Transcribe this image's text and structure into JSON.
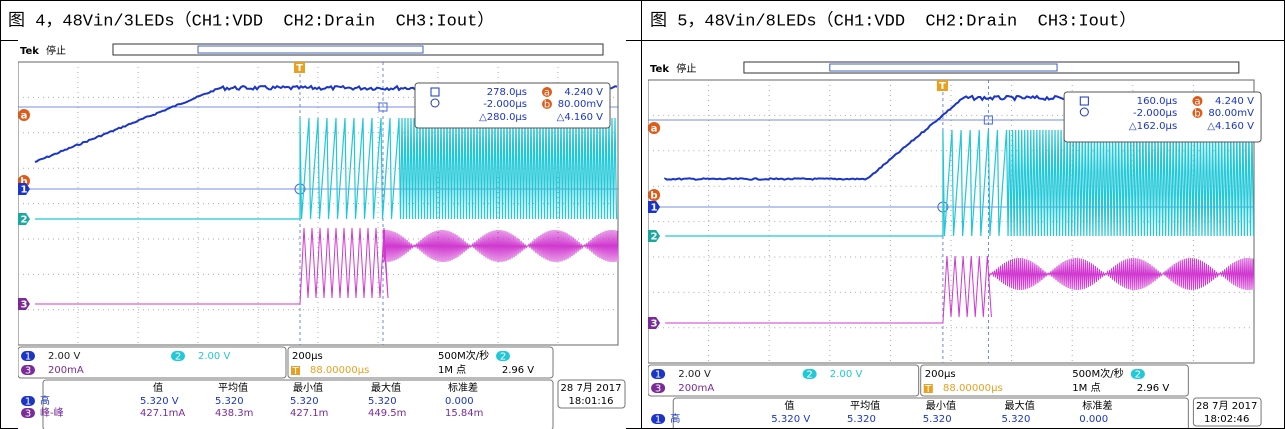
{
  "captions": [
    "图 4，48Vin/3LEDs（CH1:VDD  CH2:Drain  CH3:Iout）",
    "图 5，48Vin/8LEDs（CH1:VDD  CH2:Drain  CH3:Iout）"
  ],
  "scopes": [
    {
      "brand": "Tek",
      "state": "停止",
      "trigger_marker": "T",
      "markers": [
        "a",
        "b"
      ],
      "channel_markers": [
        "1",
        "2",
        "3"
      ],
      "readout": {
        "t1": "278.0µs",
        "v1": "4.240 V",
        "t2": "-2.000µs",
        "v2": "80.00mV",
        "dt": "△280.0µs",
        "dv": "△4.160 V"
      },
      "ch_settings": [
        {
          "ch": "1",
          "scale": "2.00 V"
        },
        {
          "ch": "2",
          "scale": "2.00 V"
        },
        {
          "ch": "3",
          "scale": "200mA"
        }
      ],
      "horizontal": {
        "timebase": "200µs",
        "position": "88.00000µs",
        "rate": "500M次/秒",
        "points": "1M 点",
        "trig_ch": "2",
        "trig_level": "2.96 V"
      },
      "meas": {
        "headers": [
          "值",
          "平均值",
          "最小值",
          "最大值",
          "标准差"
        ],
        "rows": [
          {
            "ch": "1",
            "label": "高",
            "values": [
              "5.320 V",
              "5.320",
              "5.320",
              "5.320",
              "0.000"
            ]
          },
          {
            "ch": "3",
            "label": "峰-峰",
            "values": [
              "427.1mA",
              "438.3m",
              "427.1m",
              "449.5m",
              "15.84m"
            ]
          }
        ]
      },
      "date": "28 7月 2017",
      "time": "18:01:16"
    },
    {
      "brand": "Tek",
      "state": "停止",
      "trigger_marker": "T",
      "markers": [
        "a",
        "b"
      ],
      "channel_markers": [
        "1",
        "2",
        "3"
      ],
      "readout": {
        "t1": "160.0µs",
        "v1": "4.240 V",
        "t2": "-2.000µs",
        "v2": "80.00mV",
        "dt": "△162.0µs",
        "dv": "△4.160 V"
      },
      "ch_settings": [
        {
          "ch": "1",
          "scale": "2.00 V"
        },
        {
          "ch": "2",
          "scale": "2.00 V"
        },
        {
          "ch": "3",
          "scale": "200mA"
        }
      ],
      "horizontal": {
        "timebase": "200µs",
        "position": "88.00000µs",
        "rate": "500M次/秒",
        "points": "1M 点",
        "trig_ch": "2",
        "trig_level": "2.96 V"
      },
      "meas": {
        "headers": [
          "值",
          "平均值",
          "最小值",
          "最大值",
          "标准差"
        ],
        "rows": [
          {
            "ch": "1",
            "label": "高",
            "values": [
              "5.320 V",
              "5.320",
              "5.320",
              "5.320",
              "0.000"
            ]
          }
        ]
      },
      "date": "28 7月 2017",
      "time": "18:02:46"
    }
  ]
}
